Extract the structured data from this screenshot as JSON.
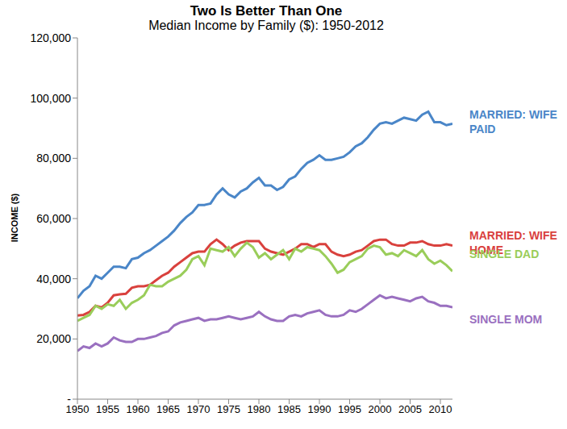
{
  "chart_data": {
    "type": "line",
    "title": "Two Is Better Than One",
    "subtitle": "Median Income by Family ($): 1950-2012",
    "y_label": "INCOME ($)",
    "x": [
      1950,
      1951,
      1952,
      1953,
      1954,
      1955,
      1956,
      1957,
      1958,
      1959,
      1960,
      1961,
      1962,
      1963,
      1964,
      1965,
      1966,
      1967,
      1968,
      1969,
      1970,
      1971,
      1972,
      1973,
      1974,
      1975,
      1976,
      1977,
      1978,
      1979,
      1980,
      1981,
      1982,
      1983,
      1984,
      1985,
      1986,
      1987,
      1988,
      1989,
      1990,
      1991,
      1992,
      1993,
      1994,
      1995,
      1996,
      1997,
      1998,
      1999,
      2000,
      2001,
      2002,
      2003,
      2004,
      2005,
      2006,
      2007,
      2008,
      2009,
      2010,
      2011,
      2012
    ],
    "xlim": [
      1950,
      2012
    ],
    "xticks": [
      1950,
      1955,
      1960,
      1965,
      1970,
      1975,
      1980,
      1985,
      1990,
      1995,
      2000,
      2005,
      2010
    ],
    "ylim": [
      0,
      120000
    ],
    "yticks": [
      {
        "value": 0,
        "label": "-"
      },
      {
        "value": 20000,
        "label": "20,000"
      },
      {
        "value": 40000,
        "label": "40,000"
      },
      {
        "value": 60000,
        "label": "60,000"
      },
      {
        "value": 80000,
        "label": "80,000"
      },
      {
        "value": 100000,
        "label": "100,000"
      },
      {
        "value": 120000,
        "label": "120,000"
      }
    ],
    "grid": false,
    "series": [
      {
        "name": "MARRIED: WIFE PAID",
        "color": "#4A86C8",
        "values": [
          33500,
          36000,
          37500,
          41000,
          40000,
          42000,
          44000,
          44000,
          43500,
          46500,
          47000,
          48500,
          49500,
          51000,
          52500,
          54000,
          56000,
          58500,
          60500,
          62000,
          64500,
          64500,
          65000,
          68000,
          70000,
          68000,
          67000,
          69000,
          70000,
          72000,
          73500,
          71000,
          71000,
          69500,
          70500,
          73000,
          74000,
          76500,
          78500,
          79500,
          81000,
          79500,
          79500,
          80000,
          80500,
          82000,
          84000,
          85000,
          87000,
          89500,
          91500,
          92000,
          91500,
          92500,
          93500,
          93000,
          92500,
          94500,
          95500,
          92000,
          92000,
          91000,
          91500
        ]
      },
      {
        "name": "MARRIED: WIFE HOME",
        "color": "#D9413D",
        "values": [
          27800,
          28000,
          29000,
          31000,
          30500,
          32000,
          34500,
          34800,
          35000,
          37000,
          37500,
          37500,
          38000,
          39500,
          41000,
          42000,
          44000,
          45500,
          47000,
          48500,
          49000,
          49000,
          51500,
          53000,
          51500,
          49500,
          51000,
          52000,
          52500,
          52500,
          52500,
          50000,
          49000,
          48500,
          48000,
          49000,
          50000,
          51500,
          51500,
          50500,
          51500,
          51500,
          49000,
          48000,
          47500,
          48000,
          49000,
          49500,
          51000,
          52500,
          53000,
          53000,
          51500,
          51000,
          51000,
          52000,
          52000,
          52500,
          51500,
          51000,
          51000,
          51500,
          51000
        ]
      },
      {
        "name": "SINGLE DAD",
        "color": "#9ACD5A",
        "values": [
          26000,
          27000,
          28000,
          31000,
          30000,
          31500,
          31000,
          33000,
          30000,
          32000,
          33000,
          34500,
          38000,
          37500,
          37500,
          39000,
          40000,
          41000,
          43000,
          46500,
          47500,
          44500,
          50000,
          49500,
          49000,
          50500,
          47500,
          50000,
          52000,
          50500,
          47000,
          48500,
          46500,
          48000,
          49500,
          46500,
          50000,
          49000,
          50500,
          50000,
          49500,
          47500,
          45000,
          42000,
          43000,
          45500,
          46500,
          47500,
          50000,
          51000,
          50500,
          48000,
          48500,
          47500,
          49500,
          48500,
          47500,
          49500,
          46500,
          45000,
          46000,
          44500,
          42500
        ]
      },
      {
        "name": "SINGLE MOM",
        "color": "#9A70C0",
        "values": [
          16000,
          17500,
          17000,
          18500,
          17500,
          18500,
          20500,
          19500,
          19000,
          19000,
          20000,
          20000,
          20500,
          21000,
          22000,
          22500,
          24500,
          25500,
          26000,
          26500,
          27000,
          26000,
          26500,
          26500,
          27000,
          27500,
          27000,
          26500,
          27000,
          27500,
          29000,
          27500,
          26500,
          26000,
          26000,
          27500,
          28000,
          27500,
          28500,
          29000,
          29500,
          28000,
          27500,
          27500,
          28000,
          29500,
          29000,
          30000,
          31500,
          33000,
          34500,
          33500,
          34000,
          33500,
          33000,
          32500,
          33500,
          34000,
          32500,
          32000,
          31000,
          31000,
          30500
        ]
      }
    ]
  }
}
